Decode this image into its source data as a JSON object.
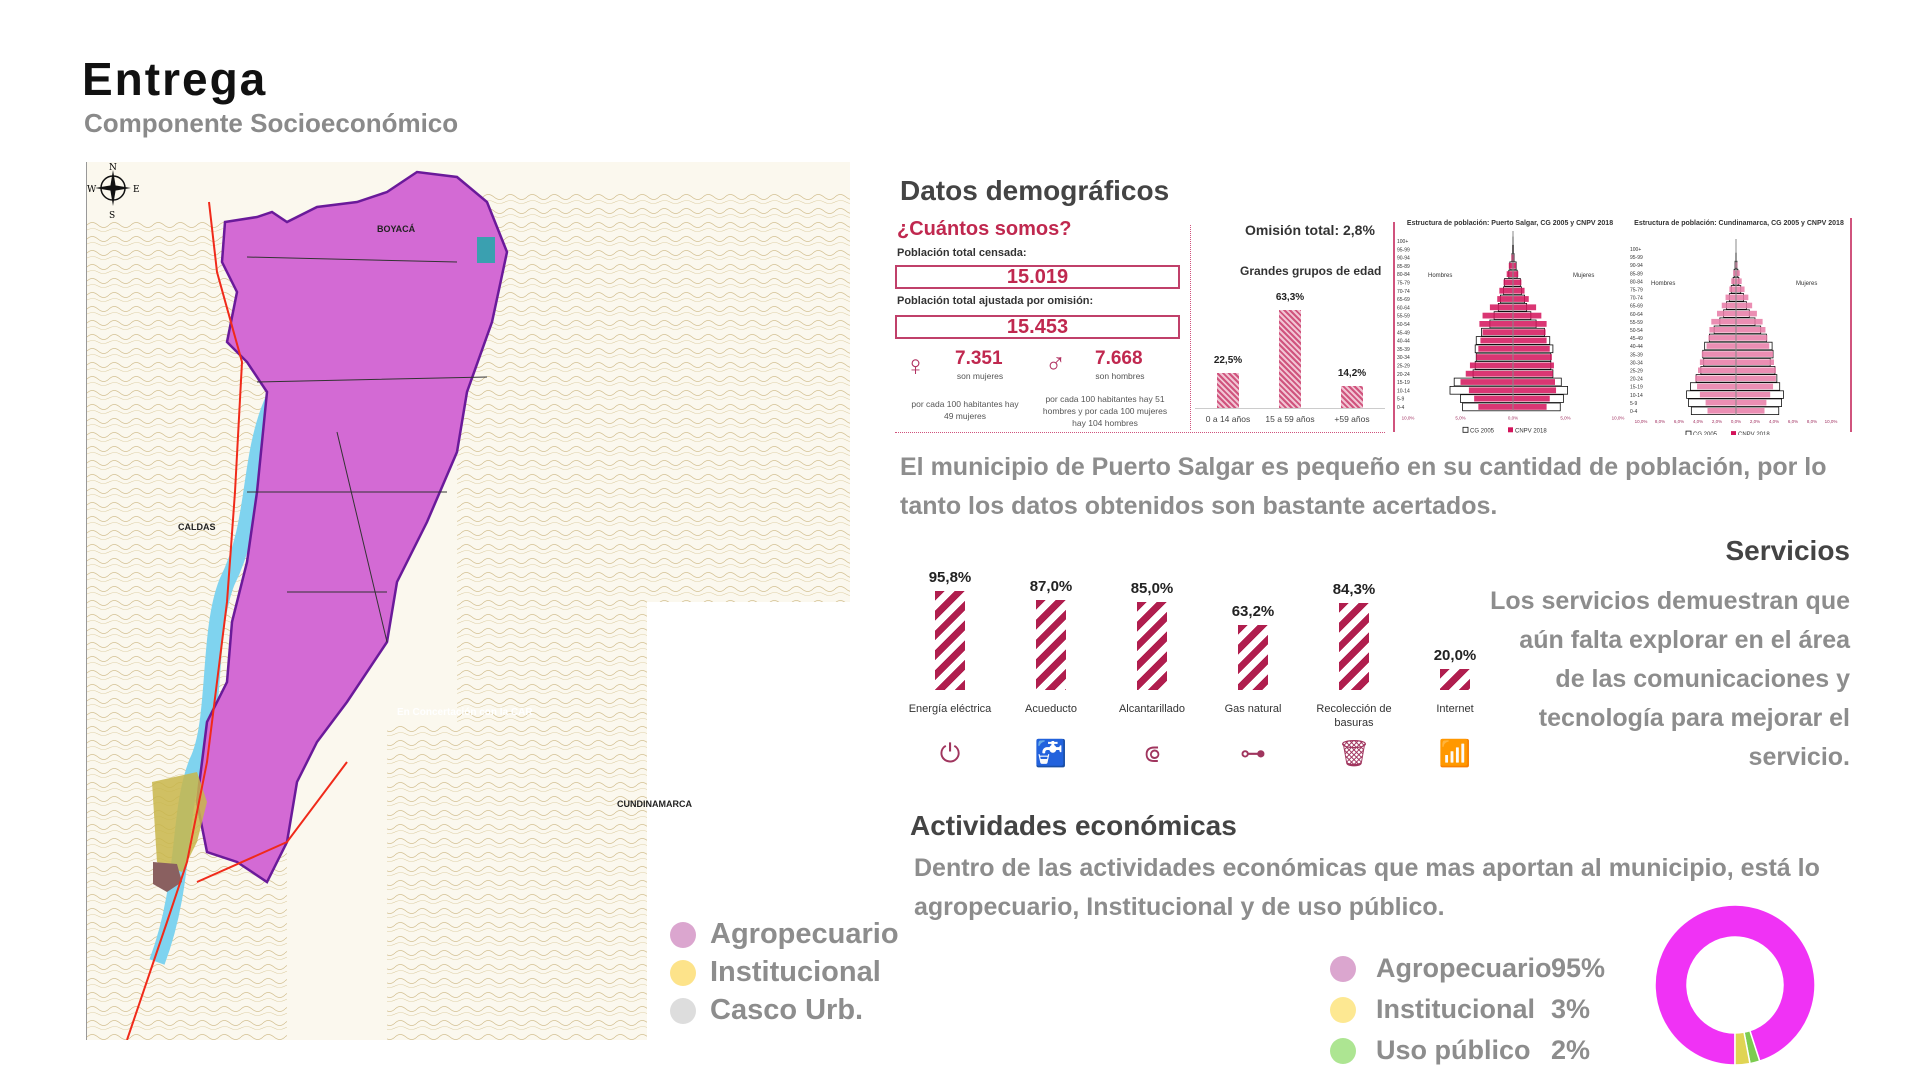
{
  "header": {
    "title": "Entrega",
    "subtitle": "Componente Socioeconómico"
  },
  "map": {
    "labels": {
      "boyaca": "BOYACÁ",
      "caldas": "CALDAS",
      "cundinamarca": "CUNDINAMARCA",
      "concertacion": "En Concertación con la CAR",
      "compass": [
        "N",
        "S",
        "E",
        "W"
      ]
    },
    "legend": [
      {
        "label": "Agropecuario",
        "color": "#d9a3d0"
      },
      {
        "label": "Institucional",
        "color": "#fde38a"
      },
      {
        "label": "Casco Urb.",
        "color": "#dddddd"
      }
    ]
  },
  "demografia": {
    "heading": "Datos demográficos",
    "question": "¿Cuántos somos?",
    "censada_label": "Población total censada:",
    "censada": "15.019",
    "ajustada_label": "Población total ajustada por omisión:",
    "ajustada": "15.453",
    "mujeres": {
      "value": "7.351",
      "label": "son mujeres",
      "note": "por cada 100 habitantes hay 49 mujeres"
    },
    "hombres": {
      "value": "7.668",
      "label": "son hombres",
      "note": "por cada 100 habitantes hay 51 hombres y por cada 100 mujeres hay 104 hombres"
    },
    "omision": "Omisión total: 2,8%",
    "age_chart": {
      "type": "bar",
      "title": "Grandes grupos de edad",
      "categories": [
        "0 a 14 años",
        "15 a 59 años",
        "+59 años"
      ],
      "values": [
        22.5,
        63.3,
        14.2
      ],
      "labels": [
        "22,5%",
        "63,3%",
        "14,2%"
      ]
    },
    "paragraph": "El municipio de Puerto Salgar es pequeño en su cantidad de población, por lo tanto los datos obtenidos son bastante acertados."
  },
  "chart_data": [
    {
      "type": "bar",
      "title": "Estructura de población: Puerto Salgar, CG 2005 y CNPV 2018",
      "left_label": "Hombres",
      "right_label": "Mujeres",
      "age_groups": [
        "0-4",
        "5-9",
        "10-14",
        "15-19",
        "20-24",
        "25-29",
        "30-34",
        "35-39",
        "40-44",
        "45-49",
        "50-54",
        "55-59",
        "60-64",
        "65-69",
        "70-74",
        "75-79",
        "80-84",
        "85-89",
        "90-94",
        "95-99",
        "100+"
      ],
      "xticks": [
        "10,0%",
        "5,0%",
        "0,0%",
        "5,0%",
        "10,0%"
      ],
      "xlim": [
        -10,
        10
      ],
      "series": [
        {
          "name": "CG 2005",
          "men": [
            4.8,
            5.0,
            6.0,
            5.6,
            3.8,
            3.6,
            3.5,
            3.6,
            3.5,
            3.0,
            2.2,
            1.8,
            1.4,
            1.2,
            0.9,
            0.8,
            0.4,
            0.3,
            0.1,
            0.05,
            0.02
          ],
          "women": [
            4.5,
            4.8,
            5.2,
            4.6,
            3.8,
            3.6,
            3.6,
            3.8,
            3.5,
            3.0,
            2.2,
            1.7,
            1.3,
            1.1,
            0.8,
            0.7,
            0.4,
            0.3,
            0.1,
            0.05,
            0.02
          ]
        },
        {
          "name": "CNPV 2018",
          "men": [
            3.3,
            3.7,
            4.2,
            5.0,
            4.5,
            4.1,
            3.5,
            3.3,
            3.1,
            2.9,
            3.2,
            2.9,
            2.2,
            1.5,
            1.3,
            0.9,
            0.6,
            0.4,
            0.15,
            0.05,
            0.02
          ],
          "women": [
            3.2,
            3.5,
            4.1,
            4.0,
            3.8,
            3.9,
            3.7,
            3.5,
            3.2,
            3.1,
            3.2,
            2.7,
            2.2,
            1.5,
            1.1,
            0.8,
            0.5,
            0.3,
            0.1,
            0.05,
            0.02
          ]
        }
      ]
    },
    {
      "type": "bar",
      "title": "Estructura de población: Cundinamarca, CG 2005 y CNPV 2018",
      "left_label": "Hombres",
      "right_label": "Mujeres",
      "age_groups": [
        "0-4",
        "5-9",
        "10-14",
        "15-19",
        "20-24",
        "25-29",
        "30-34",
        "35-39",
        "40-44",
        "45-49",
        "50-54",
        "55-59",
        "60-64",
        "65-69",
        "70-74",
        "75-79",
        "80-84",
        "85-89",
        "90-94",
        "95-99",
        "100+"
      ],
      "xticks": [
        "10,0%",
        "8,0%",
        "6,0%",
        "4,0%",
        "2,0%",
        "0,0%",
        "2,0%",
        "4,0%",
        "6,0%",
        "8,0%",
        "10,0%"
      ],
      "xlim": [
        -10,
        10
      ],
      "series": [
        {
          "name": "CG 2005",
          "men": [
            4.7,
            5.0,
            5.2,
            4.8,
            4.2,
            3.7,
            3.4,
            3.5,
            3.3,
            2.8,
            2.3,
            1.7,
            1.3,
            1.0,
            0.7,
            0.5,
            0.3,
            0.2,
            0.1,
            0.03,
            0.01
          ],
          "women": [
            4.5,
            4.8,
            5.0,
            4.6,
            4.3,
            4.1,
            3.6,
            3.9,
            3.8,
            3.2,
            2.6,
            2.0,
            1.4,
            1.1,
            0.8,
            0.5,
            0.3,
            0.2,
            0.1,
            0.03,
            0.01
          ]
        },
        {
          "name": "CNPV 2018",
          "men": [
            3.0,
            3.2,
            3.8,
            4.1,
            4.3,
            4.0,
            3.8,
            3.6,
            3.1,
            2.9,
            2.8,
            2.6,
            2.0,
            1.5,
            1.1,
            0.7,
            0.5,
            0.3,
            0.1,
            0.03,
            0.01
          ],
          "women": [
            3.0,
            3.2,
            3.6,
            3.9,
            4.2,
            4.2,
            4.0,
            3.9,
            3.5,
            3.3,
            3.1,
            2.8,
            2.2,
            1.7,
            1.3,
            0.9,
            0.6,
            0.4,
            0.15,
            0.04,
            0.01
          ]
        }
      ]
    },
    {
      "type": "bar",
      "title": "Servicios",
      "categories": [
        "Energía eléctrica",
        "Acueducto",
        "Alcantarillado",
        "Gas natural",
        "Recolección de basuras",
        "Internet"
      ],
      "values": [
        95.8,
        87.0,
        85.0,
        63.2,
        84.3,
        20.0
      ],
      "labels": [
        "95,8%",
        "87,0%",
        "85,0%",
        "63,2%",
        "84,3%",
        "20,0%"
      ],
      "icons": [
        "plug-icon",
        "faucet-icon",
        "pipe-icon",
        "valve-icon",
        "trash-bin-icon",
        "wifi-icon"
      ]
    },
    {
      "type": "pie",
      "categories": [
        "Agropecuario",
        "Institucional",
        "Uso público"
      ],
      "values": [
        95,
        3,
        2
      ],
      "labels": [
        "95%",
        "3%",
        "2%"
      ],
      "colors": [
        "#f032f5",
        "#e0d454",
        "#7ccc50"
      ],
      "legend_colors": [
        "#dba6cf",
        "#fde892",
        "#ade592"
      ]
    }
  ],
  "servicios": {
    "heading": "Servicios",
    "text": "Los servicios demuestran que aún falta explorar en el área de las comunicaciones y tecnología para mejorar el servicio."
  },
  "actividades": {
    "heading": "Actividades económicas",
    "paragraph": "Dentro de las actividades económicas que mas aportan al municipio, está lo agropecuario, Institucional y de uso público."
  },
  "colors": {
    "accent": "#c0284f",
    "text_gray": "#8d8d8d"
  }
}
